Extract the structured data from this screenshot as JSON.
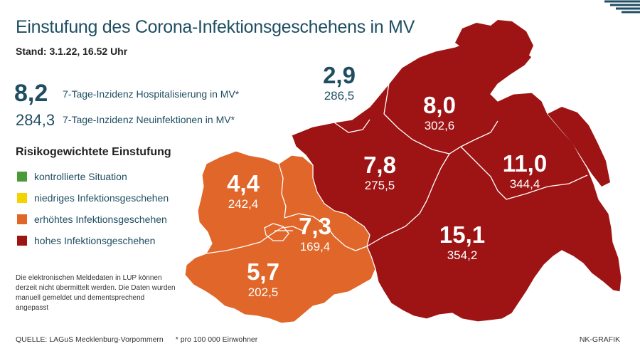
{
  "title": "Einstufung des Corona-Infektionsgeschehens in MV",
  "stand": "Stand: 3.1.22, 16.52 Uhr",
  "kpi": {
    "hosp_value": "8,2",
    "hosp_label": "7-Tage-Inzidenz Hospitalisierung in MV*",
    "neuinf_value": "284,3",
    "neuinf_label": "7-Tage-Inzidenz Neuinfektionen in MV*"
  },
  "legend": {
    "title": "Risikogewichtete Einstufung",
    "items": [
      {
        "label": "kontrollierte Situation",
        "color": "#4a9a3a"
      },
      {
        "label": "niedriges Infektionsgeschehen",
        "color": "#f2d400"
      },
      {
        "label": "erhöhtes Infektionsgeschehen",
        "color": "#e0662a"
      },
      {
        "label": "hohes Infektionsgeschehen",
        "color": "#9e1414"
      }
    ]
  },
  "regions": [
    {
      "incidence_hosp": "2,9",
      "incidence_new": "286,5",
      "level": "hoch"
    },
    {
      "incidence_hosp": "8,0",
      "incidence_new": "302,6",
      "level": "hoch"
    },
    {
      "incidence_hosp": "7,8",
      "incidence_new": "275,5",
      "level": "hoch"
    },
    {
      "incidence_hosp": "11,0",
      "incidence_new": "344,4",
      "level": "hoch"
    },
    {
      "incidence_hosp": "4,4",
      "incidence_new": "242,4",
      "level": "erhöht"
    },
    {
      "incidence_hosp": "7,3",
      "incidence_new": "169,4",
      "level": "erhöht"
    },
    {
      "incidence_hosp": "15,1",
      "incidence_new": "354,2",
      "level": "hoch"
    },
    {
      "incidence_hosp": "5,7",
      "incidence_new": "202,5",
      "level": "erhöht"
    }
  ],
  "note": "Die elektronischen Meldedaten in LUP können derzeit nicht übermittelt werden. Die Daten wurden manuell gemeldet und dementsprechend angepasst",
  "source": "QUELLE: LAGuS Mecklenburg-Vorpommern",
  "footnote": "* pro 100 000 Einwohner",
  "credit": "NK-GRAFIK",
  "colors": {
    "high": "#9e1414",
    "elevated": "#e0662a",
    "text_blue": "#1f4e63"
  }
}
